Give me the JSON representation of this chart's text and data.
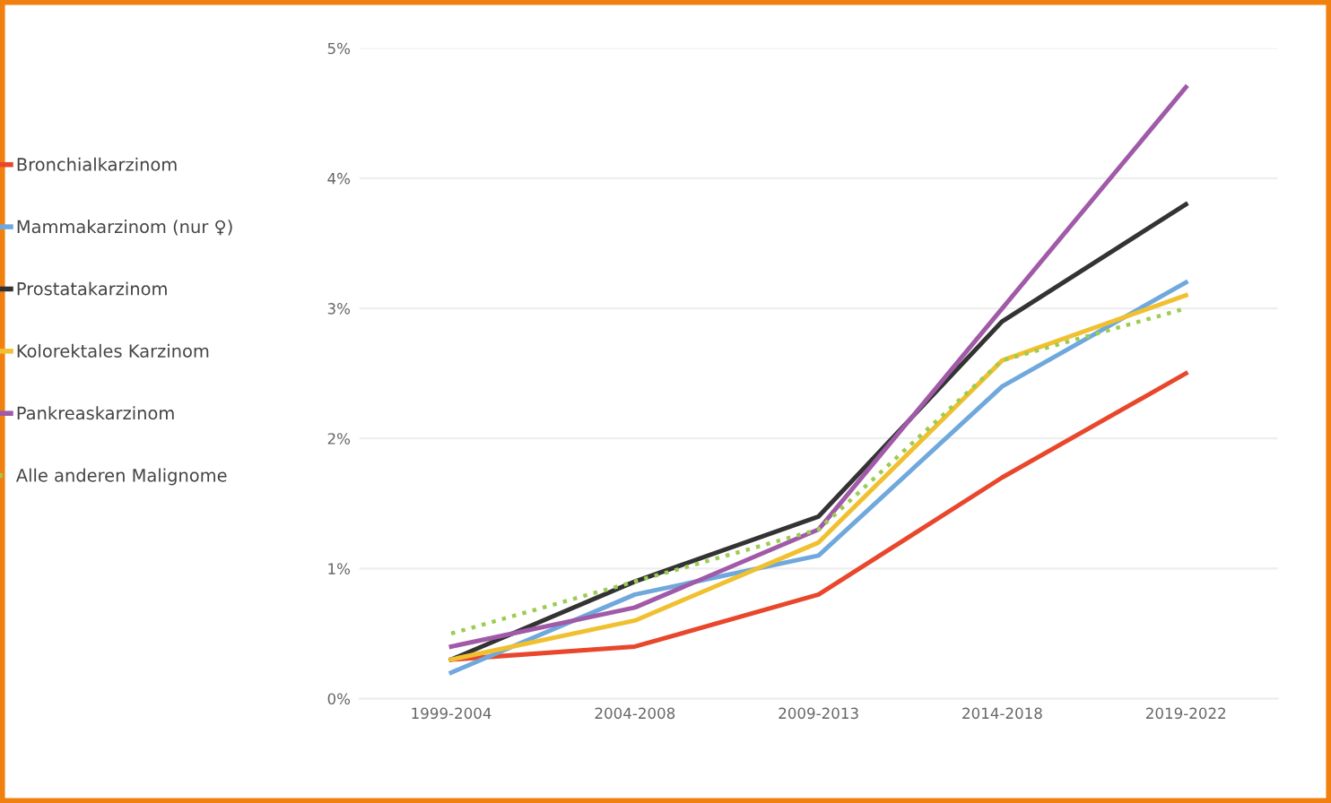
{
  "chart_data": {
    "type": "line",
    "categories": [
      "1999-2004",
      "2004-2008",
      "2009-2013",
      "2014-2018",
      "2019-2022"
    ],
    "series": [
      {
        "name": "Bronchialkarzinom",
        "color": "#e8472c",
        "values": [
          0.3,
          0.4,
          0.8,
          1.7,
          2.5
        ]
      },
      {
        "name": "Mammakarzinom (nur ♀)",
        "color": "#6fa8dc",
        "values": [
          0.2,
          0.8,
          1.1,
          2.4,
          3.2
        ]
      },
      {
        "name": "Prostatakarzinom",
        "color": "#333333",
        "values": [
          0.3,
          0.9,
          1.4,
          2.9,
          3.8
        ]
      },
      {
        "name": "Kolorektales Karzinom",
        "color": "#f0c030",
        "values": [
          0.3,
          0.6,
          1.2,
          2.6,
          3.1
        ]
      },
      {
        "name": "Pankreaskarzinom",
        "color": "#a05aa8",
        "values": [
          0.4,
          0.7,
          1.3,
          3.0,
          4.7
        ]
      },
      {
        "name": "Alle anderen Malignome",
        "color": "#9ccc50",
        "line_style": "dotted",
        "values": [
          0.5,
          0.9,
          1.3,
          2.6,
          3.0
        ]
      }
    ],
    "ylim": [
      0,
      5
    ],
    "yticks": [
      {
        "value": 0,
        "label": "0%"
      },
      {
        "value": 1,
        "label": "1%"
      },
      {
        "value": 2,
        "label": "2%"
      },
      {
        "value": 3,
        "label": "3%"
      },
      {
        "value": 4,
        "label": "4%"
      },
      {
        "value": 5,
        "label": "5%"
      }
    ],
    "grid": "y",
    "legend": "left",
    "marker": "none",
    "line_style": "solid"
  }
}
